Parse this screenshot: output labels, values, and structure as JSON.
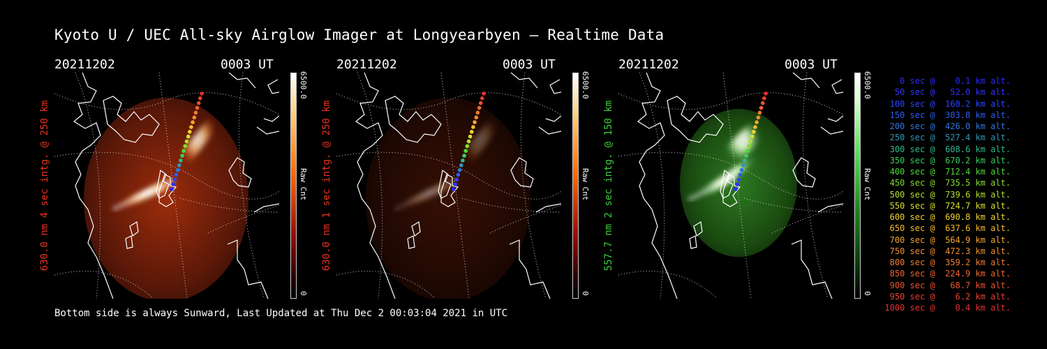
{
  "title": "Kyoto U / UEC All-sky Airglow Imager at Longyearbyen — Realtime Data",
  "panels": [
    {
      "date": "20211202",
      "time": "0003 UT",
      "label": "630.0 nm 4 sec intg. @ 250 km",
      "label_color": "#e8321c",
      "cbar_max": "6500.0",
      "cbar_unit": "Raw Cnt",
      "cbar_min": "0",
      "colormap": "red"
    },
    {
      "date": "20211202",
      "time": "0003 UT",
      "label": "630.0 nm 1 sec intg. @ 250 km",
      "label_color": "#e8321c",
      "cbar_max": "6500.0",
      "cbar_unit": "Raw Cnt",
      "cbar_min": "0",
      "colormap": "red"
    },
    {
      "date": "20211202",
      "time": "0003 UT",
      "label": "557.7 nm 2 sec intg. @ 150 km",
      "label_color": "#3ccd3c",
      "cbar_max": "6500.0",
      "cbar_unit": "Raw Cnt",
      "cbar_min": "0",
      "colormap": "green"
    }
  ],
  "footer": "Bottom side is always Sunward, Last Updated at Thu Dec  2 00:03:04 2021 in UTC",
  "legend": [
    {
      "text": "   0 sec @    0.1 km alt.",
      "color": "#2a2aff"
    },
    {
      "text": "  50 sec @   52.0 km alt.",
      "color": "#3232ff"
    },
    {
      "text": " 100 sec @  160.2 km alt.",
      "color": "#2c44ff"
    },
    {
      "text": " 150 sec @  303.8 km alt.",
      "color": "#2d5cf0"
    },
    {
      "text": " 200 sec @  426.0 km alt.",
      "color": "#2f76dd"
    },
    {
      "text": " 250 sec @  527.4 km alt.",
      "color": "#2f97b8"
    },
    {
      "text": " 300 sec @  608.6 km alt.",
      "color": "#30b890"
    },
    {
      "text": " 350 sec @  670.2 km alt.",
      "color": "#38cf5e"
    },
    {
      "text": " 400 sec @  712.4 km alt.",
      "color": "#4fda36"
    },
    {
      "text": " 450 sec @  735.5 km alt.",
      "color": "#86dd2c"
    },
    {
      "text": " 500 sec @  739.6 km alt.",
      "color": "#b2de2c"
    },
    {
      "text": " 550 sec @  724.7 km alt.",
      "color": "#d8de2e"
    },
    {
      "text": " 600 sec @  690.8 km alt.",
      "color": "#efd22e"
    },
    {
      "text": " 650 sec @  637.6 km alt.",
      "color": "#f4bb2e"
    },
    {
      "text": " 700 sec @  564.9 km alt.",
      "color": "#f5a52e"
    },
    {
      "text": " 750 sec @  472.3 km alt.",
      "color": "#f3902f"
    },
    {
      "text": " 800 sec @  359.2 km alt.",
      "color": "#f07a30"
    },
    {
      "text": " 850 sec @  224.9 km alt.",
      "color": "#ee6630"
    },
    {
      "text": " 900 sec @   68.7 km alt.",
      "color": "#ea5230"
    },
    {
      "text": " 950 sec @    6.2 km alt.",
      "color": "#e84030"
    },
    {
      "text": "1000 sec @    0.4 km alt.",
      "color": "#e63030"
    }
  ]
}
